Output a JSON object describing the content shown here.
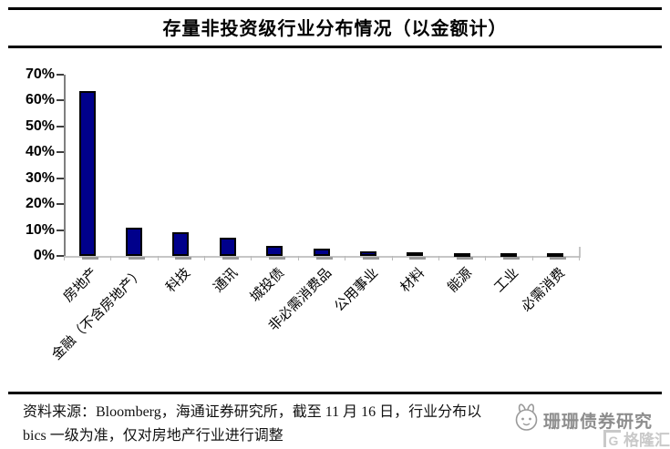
{
  "title": "存量非投资级行业分布情况（以金额计）",
  "chart_data": {
    "type": "bar",
    "title": "存量非投资级行业分布情况（以金额计）",
    "categories": [
      "房地产",
      "金融（不含房地产）",
      "科技",
      "通讯",
      "城投债",
      "非必需消费品",
      "公用事业",
      "材料",
      "能源",
      "工业",
      "必需消费"
    ],
    "values": [
      63.7,
      11.0,
      9.0,
      7.1,
      3.9,
      2.8,
      1.8,
      1.5,
      1.0,
      0.7,
      0.6
    ],
    "xlabel": "",
    "ylabel": "",
    "ylim": [
      0,
      70
    ],
    "ytick_step": 10,
    "ytick_labels": [
      "0%",
      "10%",
      "20%",
      "30%",
      "40%",
      "50%",
      "60%",
      "70%"
    ],
    "grid": false,
    "legend": "none",
    "bar_color": "#00008B",
    "bar_border_color": "#000000",
    "xtick_label_rotation_deg": 45
  },
  "footer": {
    "line1": "资料来源：Bloomberg，海通证券研究所，截至 11 月 16 日，行业分布以",
    "line2": "bics 一级为准，仅对房地产行业进行调整"
  },
  "watermark": {
    "brand": "珊珊债券研究",
    "logo_letter": "G",
    "logo_text": "格隆汇"
  }
}
